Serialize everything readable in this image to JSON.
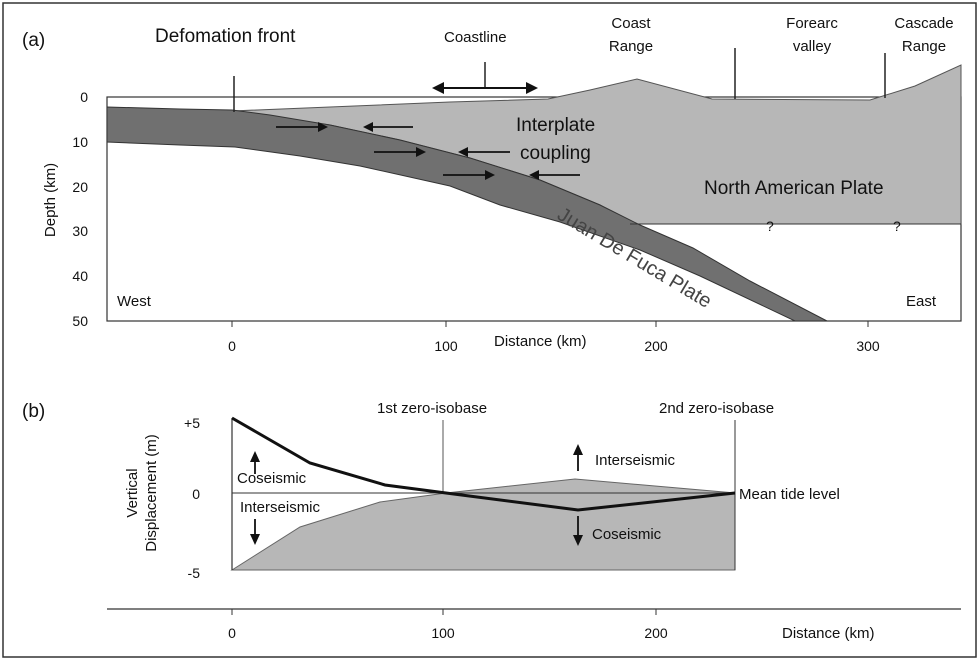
{
  "panel_a": {
    "label": "(a)",
    "y_axis_label": "Depth (km)",
    "x_axis_label": "Distance (km)",
    "y_ticks": [
      "0",
      "10",
      "20",
      "30",
      "40",
      "50"
    ],
    "x_ticks": [
      "0",
      "100",
      "200",
      "300"
    ],
    "labels": {
      "deformation_front": "Defomation front",
      "coastline": "Coastline",
      "coast_range_1": "Coast",
      "coast_range_2": "Range",
      "forearc_1": "Forearc",
      "forearc_2": "valley",
      "cascade_1": "Cascade",
      "cascade_2": "Range",
      "interplate_1": "Interplate",
      "interplate_2": "coupling",
      "north_american": "North American Plate",
      "juan_de_fuca": "Juan De Fuca Plate",
      "west": "West",
      "east": "East",
      "q1": "?",
      "q2": "?"
    },
    "colors": {
      "light_plate": "#b7b7b7",
      "dark_plate": "#707070"
    }
  },
  "panel_b": {
    "label": "(b)",
    "y_axis_label_1": "Vertical",
    "y_axis_label_2": "Displacement (m)",
    "x_axis_label": "Distance (km)",
    "y_ticks": [
      "+5",
      "0",
      "-5"
    ],
    "x_ticks": [
      "0",
      "100",
      "200"
    ],
    "labels": {
      "first_zero": "1st zero-isobase",
      "second_zero": "2nd zero-isobase",
      "coseismic_left": "Coseismic",
      "interseismic_left": "Interseismic",
      "interseismic_right": "Interseismic",
      "coseismic_right": "Coseismic",
      "mean_tide": "Mean tide level"
    }
  }
}
